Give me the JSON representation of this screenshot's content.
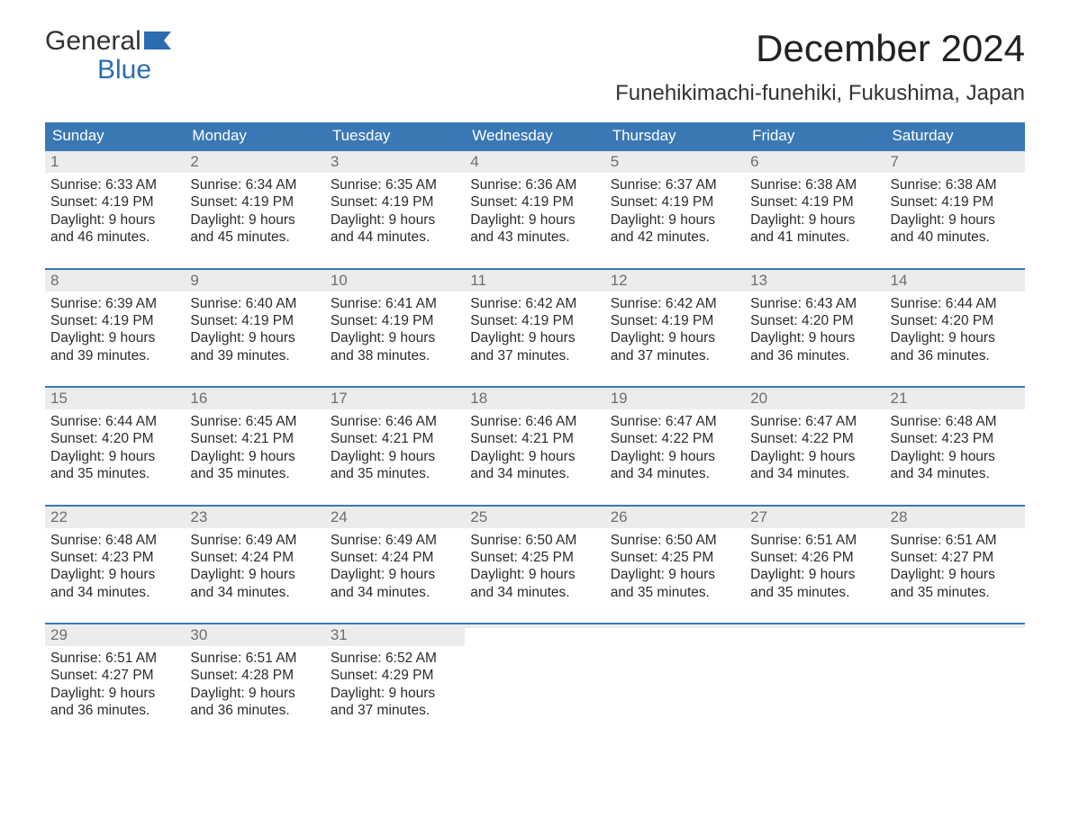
{
  "logo": {
    "line1": "General",
    "line2": "Blue"
  },
  "title": "December 2024",
  "location": "Funehikimachi-funehiki, Fukushima, Japan",
  "colors": {
    "header_bg": "#3a78b5",
    "header_text": "#ffffff",
    "daynum_bg": "#ececec",
    "daynum_text": "#6e6e6e",
    "week_border": "#3a78b5",
    "body_text": "#2b2b2b",
    "logo_blue": "#2a6db0",
    "page_bg": "#ffffff"
  },
  "day_labels": [
    "Sunday",
    "Monday",
    "Tuesday",
    "Wednesday",
    "Thursday",
    "Friday",
    "Saturday"
  ],
  "weeks": [
    [
      {
        "num": "1",
        "sunrise": "Sunrise: 6:33 AM",
        "sunset": "Sunset: 4:19 PM",
        "day1": "Daylight: 9 hours",
        "day2": "and 46 minutes."
      },
      {
        "num": "2",
        "sunrise": "Sunrise: 6:34 AM",
        "sunset": "Sunset: 4:19 PM",
        "day1": "Daylight: 9 hours",
        "day2": "and 45 minutes."
      },
      {
        "num": "3",
        "sunrise": "Sunrise: 6:35 AM",
        "sunset": "Sunset: 4:19 PM",
        "day1": "Daylight: 9 hours",
        "day2": "and 44 minutes."
      },
      {
        "num": "4",
        "sunrise": "Sunrise: 6:36 AM",
        "sunset": "Sunset: 4:19 PM",
        "day1": "Daylight: 9 hours",
        "day2": "and 43 minutes."
      },
      {
        "num": "5",
        "sunrise": "Sunrise: 6:37 AM",
        "sunset": "Sunset: 4:19 PM",
        "day1": "Daylight: 9 hours",
        "day2": "and 42 minutes."
      },
      {
        "num": "6",
        "sunrise": "Sunrise: 6:38 AM",
        "sunset": "Sunset: 4:19 PM",
        "day1": "Daylight: 9 hours",
        "day2": "and 41 minutes."
      },
      {
        "num": "7",
        "sunrise": "Sunrise: 6:38 AM",
        "sunset": "Sunset: 4:19 PM",
        "day1": "Daylight: 9 hours",
        "day2": "and 40 minutes."
      }
    ],
    [
      {
        "num": "8",
        "sunrise": "Sunrise: 6:39 AM",
        "sunset": "Sunset: 4:19 PM",
        "day1": "Daylight: 9 hours",
        "day2": "and 39 minutes."
      },
      {
        "num": "9",
        "sunrise": "Sunrise: 6:40 AM",
        "sunset": "Sunset: 4:19 PM",
        "day1": "Daylight: 9 hours",
        "day2": "and 39 minutes."
      },
      {
        "num": "10",
        "sunrise": "Sunrise: 6:41 AM",
        "sunset": "Sunset: 4:19 PM",
        "day1": "Daylight: 9 hours",
        "day2": "and 38 minutes."
      },
      {
        "num": "11",
        "sunrise": "Sunrise: 6:42 AM",
        "sunset": "Sunset: 4:19 PM",
        "day1": "Daylight: 9 hours",
        "day2": "and 37 minutes."
      },
      {
        "num": "12",
        "sunrise": "Sunrise: 6:42 AM",
        "sunset": "Sunset: 4:19 PM",
        "day1": "Daylight: 9 hours",
        "day2": "and 37 minutes."
      },
      {
        "num": "13",
        "sunrise": "Sunrise: 6:43 AM",
        "sunset": "Sunset: 4:20 PM",
        "day1": "Daylight: 9 hours",
        "day2": "and 36 minutes."
      },
      {
        "num": "14",
        "sunrise": "Sunrise: 6:44 AM",
        "sunset": "Sunset: 4:20 PM",
        "day1": "Daylight: 9 hours",
        "day2": "and 36 minutes."
      }
    ],
    [
      {
        "num": "15",
        "sunrise": "Sunrise: 6:44 AM",
        "sunset": "Sunset: 4:20 PM",
        "day1": "Daylight: 9 hours",
        "day2": "and 35 minutes."
      },
      {
        "num": "16",
        "sunrise": "Sunrise: 6:45 AM",
        "sunset": "Sunset: 4:21 PM",
        "day1": "Daylight: 9 hours",
        "day2": "and 35 minutes."
      },
      {
        "num": "17",
        "sunrise": "Sunrise: 6:46 AM",
        "sunset": "Sunset: 4:21 PM",
        "day1": "Daylight: 9 hours",
        "day2": "and 35 minutes."
      },
      {
        "num": "18",
        "sunrise": "Sunrise: 6:46 AM",
        "sunset": "Sunset: 4:21 PM",
        "day1": "Daylight: 9 hours",
        "day2": "and 34 minutes."
      },
      {
        "num": "19",
        "sunrise": "Sunrise: 6:47 AM",
        "sunset": "Sunset: 4:22 PM",
        "day1": "Daylight: 9 hours",
        "day2": "and 34 minutes."
      },
      {
        "num": "20",
        "sunrise": "Sunrise: 6:47 AM",
        "sunset": "Sunset: 4:22 PM",
        "day1": "Daylight: 9 hours",
        "day2": "and 34 minutes."
      },
      {
        "num": "21",
        "sunrise": "Sunrise: 6:48 AM",
        "sunset": "Sunset: 4:23 PM",
        "day1": "Daylight: 9 hours",
        "day2": "and 34 minutes."
      }
    ],
    [
      {
        "num": "22",
        "sunrise": "Sunrise: 6:48 AM",
        "sunset": "Sunset: 4:23 PM",
        "day1": "Daylight: 9 hours",
        "day2": "and 34 minutes."
      },
      {
        "num": "23",
        "sunrise": "Sunrise: 6:49 AM",
        "sunset": "Sunset: 4:24 PM",
        "day1": "Daylight: 9 hours",
        "day2": "and 34 minutes."
      },
      {
        "num": "24",
        "sunrise": "Sunrise: 6:49 AM",
        "sunset": "Sunset: 4:24 PM",
        "day1": "Daylight: 9 hours",
        "day2": "and 34 minutes."
      },
      {
        "num": "25",
        "sunrise": "Sunrise: 6:50 AM",
        "sunset": "Sunset: 4:25 PM",
        "day1": "Daylight: 9 hours",
        "day2": "and 34 minutes."
      },
      {
        "num": "26",
        "sunrise": "Sunrise: 6:50 AM",
        "sunset": "Sunset: 4:25 PM",
        "day1": "Daylight: 9 hours",
        "day2": "and 35 minutes."
      },
      {
        "num": "27",
        "sunrise": "Sunrise: 6:51 AM",
        "sunset": "Sunset: 4:26 PM",
        "day1": "Daylight: 9 hours",
        "day2": "and 35 minutes."
      },
      {
        "num": "28",
        "sunrise": "Sunrise: 6:51 AM",
        "sunset": "Sunset: 4:27 PM",
        "day1": "Daylight: 9 hours",
        "day2": "and 35 minutes."
      }
    ],
    [
      {
        "num": "29",
        "sunrise": "Sunrise: 6:51 AM",
        "sunset": "Sunset: 4:27 PM",
        "day1": "Daylight: 9 hours",
        "day2": "and 36 minutes."
      },
      {
        "num": "30",
        "sunrise": "Sunrise: 6:51 AM",
        "sunset": "Sunset: 4:28 PM",
        "day1": "Daylight: 9 hours",
        "day2": "and 36 minutes."
      },
      {
        "num": "31",
        "sunrise": "Sunrise: 6:52 AM",
        "sunset": "Sunset: 4:29 PM",
        "day1": "Daylight: 9 hours",
        "day2": "and 37 minutes."
      },
      {
        "num": "",
        "sunrise": "",
        "sunset": "",
        "day1": "",
        "day2": ""
      },
      {
        "num": "",
        "sunrise": "",
        "sunset": "",
        "day1": "",
        "day2": ""
      },
      {
        "num": "",
        "sunrise": "",
        "sunset": "",
        "day1": "",
        "day2": ""
      },
      {
        "num": "",
        "sunrise": "",
        "sunset": "",
        "day1": "",
        "day2": ""
      }
    ]
  ]
}
